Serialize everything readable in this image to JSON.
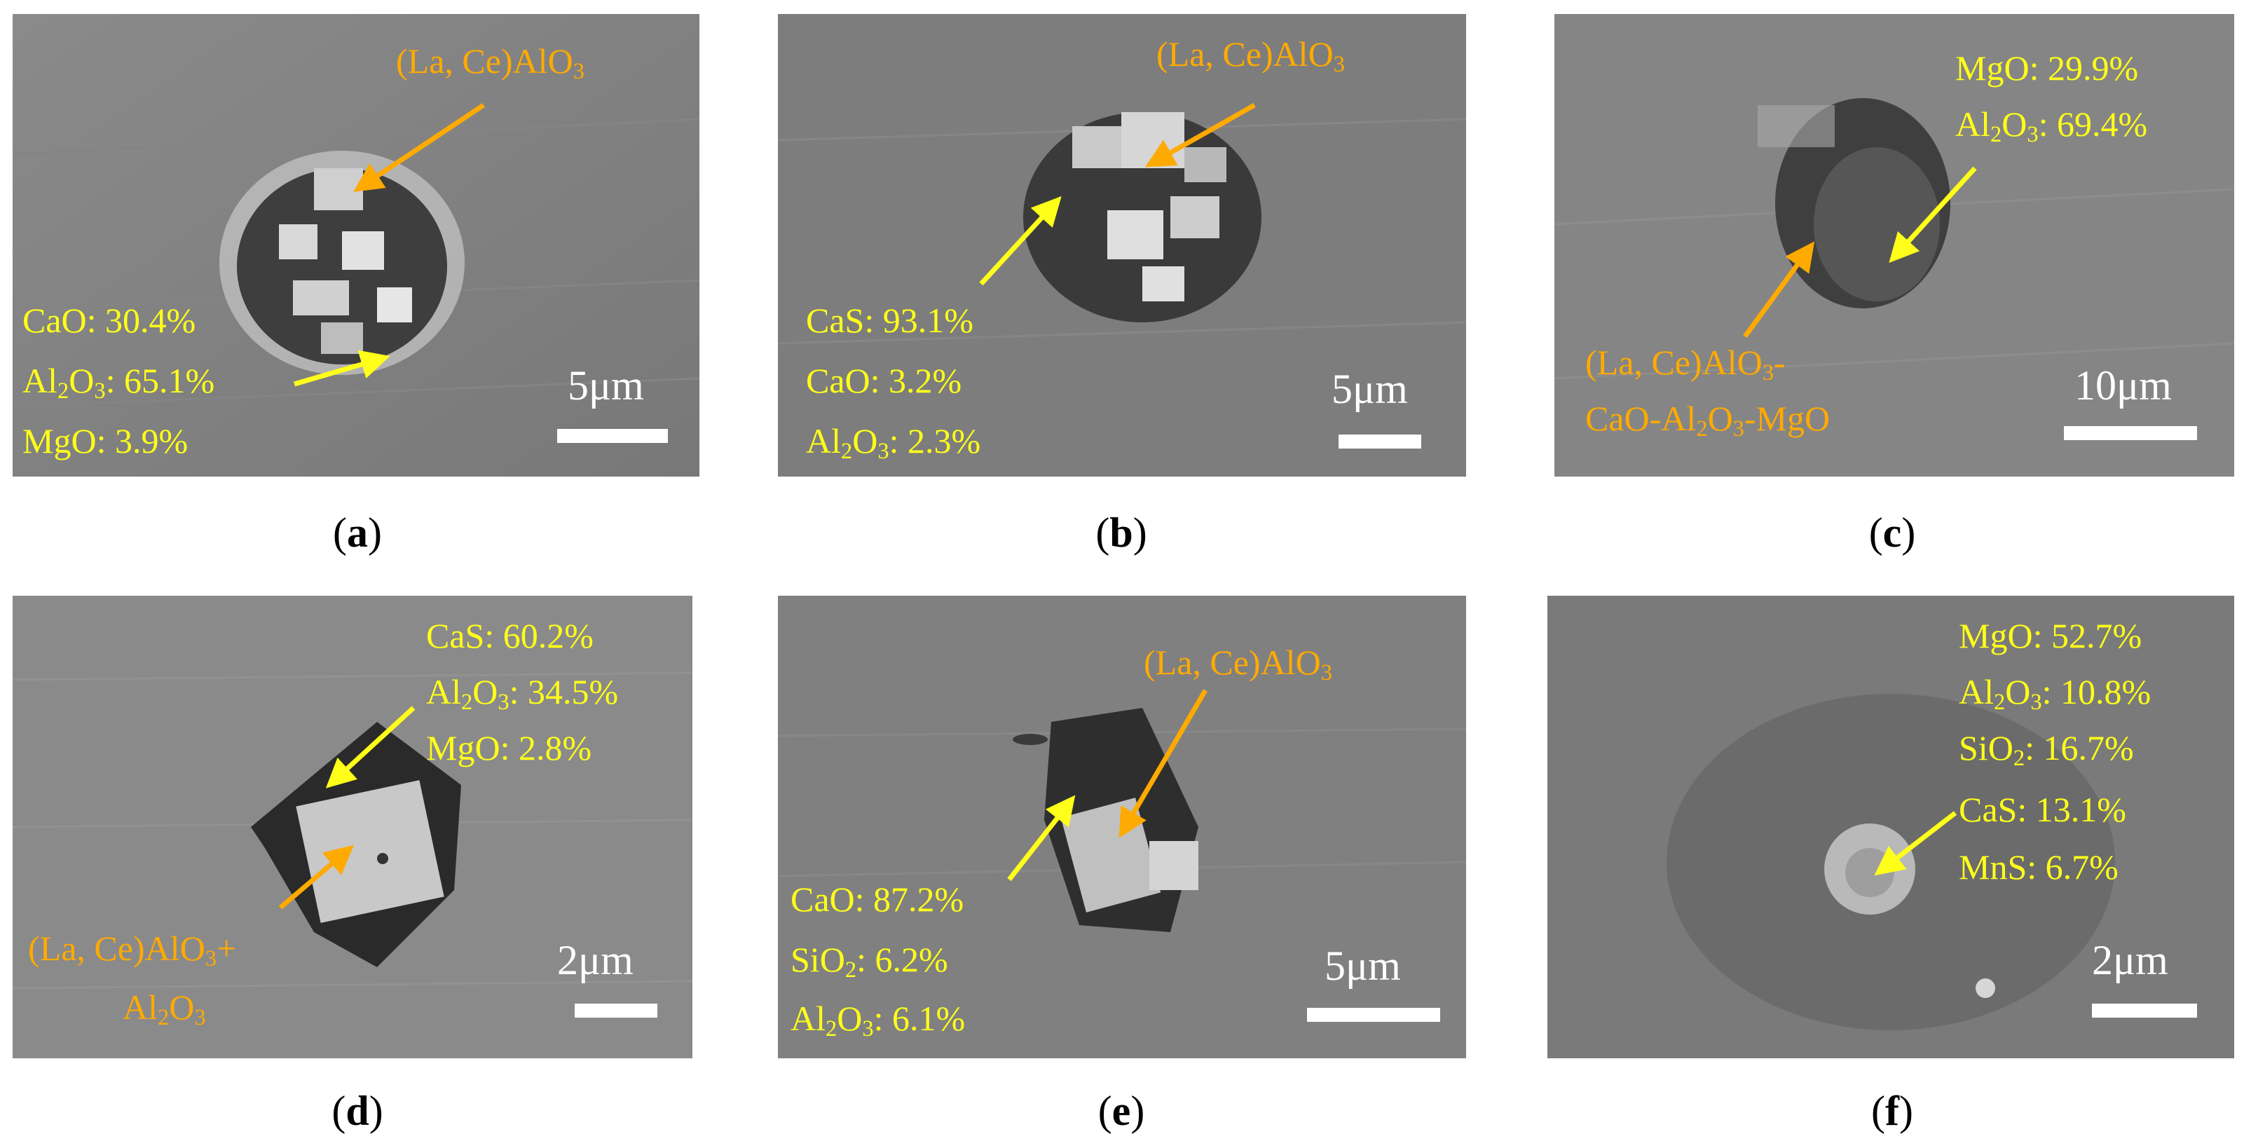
{
  "panels": {
    "a": {
      "caption": "a",
      "top_label": "(La, Ce)AlO",
      "top_label_sub": "3",
      "lines": [
        "CaO: 30.4%",
        "Al",
        "2",
        "O",
        "3",
        ": 65.1%",
        "MgO: 3.9%"
      ],
      "scale": "5μm"
    },
    "b": {
      "caption": "b",
      "top_label": "(La, Ce)AlO",
      "top_label_sub": "3",
      "line1": "CaS: 93.1%",
      "line2": "CaO: 3.2%",
      "line3_a": "Al",
      "line3_s1": "2",
      "line3_b": "O",
      "line3_s2": "3",
      "line3_c": ": 2.3%",
      "scale": "5μm"
    },
    "c": {
      "caption": "c",
      "line1": "MgO: 29.9%",
      "line2_a": "Al",
      "line2_s1": "2",
      "line2_b": "O",
      "line2_s2": "3",
      "line2_c": ": 69.4%",
      "bottom1_a": "(La, Ce)AlO",
      "bottom1_s": "3",
      "bottom1_b": "-",
      "bottom2_a": "CaO-Al",
      "bottom2_s1": "2",
      "bottom2_b": "O",
      "bottom2_s2": "3",
      "bottom2_c": "-MgO",
      "scale": "10μm"
    },
    "d": {
      "caption": "d",
      "line1": "CaS: 60.2%",
      "line2_a": "Al",
      "line2_s1": "2",
      "line2_b": "O",
      "line2_s2": "3",
      "line2_c": ": 34.5%",
      "line3": "MgO: 2.8%",
      "bottom1_a": "(La, Ce)AlO",
      "bottom1_s": "3",
      "bottom1_b": "+",
      "bottom2_a": "Al",
      "bottom2_s1": "2",
      "bottom2_b": "O",
      "bottom2_s2": "3",
      "scale": "2μm"
    },
    "e": {
      "caption": "e",
      "top_label": "(La, Ce)AlO",
      "top_label_sub": "3",
      "line1": "CaO: 87.2%",
      "line2_a": "SiO",
      "line2_s": "2",
      "line2_b": ": 6.2%",
      "line3_a": "Al",
      "line3_s1": "2",
      "line3_b": "O",
      "line3_s2": "3",
      "line3_c": ": 6.1%",
      "scale": "5μm"
    },
    "f": {
      "caption": "f",
      "line1": "MgO: 52.7%",
      "line2_a": "Al",
      "line2_s1": "2",
      "line2_b": "O",
      "line2_s2": "3",
      "line2_c": ": 10.8%",
      "line3_a": "SiO",
      "line3_s": "2",
      "line3_b": ": 16.7%",
      "line4": "CaS: 13.1%",
      "line5": "MnS: 6.7%",
      "scale": "2μm"
    }
  },
  "a_lines": {
    "l1": "CaO: 30.4%",
    "l2_a": "Al",
    "l2_s1": "2",
    "l2_b": "O",
    "l2_s2": "3",
    "l2_c": ": 65.1%",
    "l3": "MgO: 3.9%"
  },
  "colors": {
    "background_gray": "#7e7e7e",
    "label_yellow": "#ffff1a",
    "label_orange": "#ffaa00"
  }
}
